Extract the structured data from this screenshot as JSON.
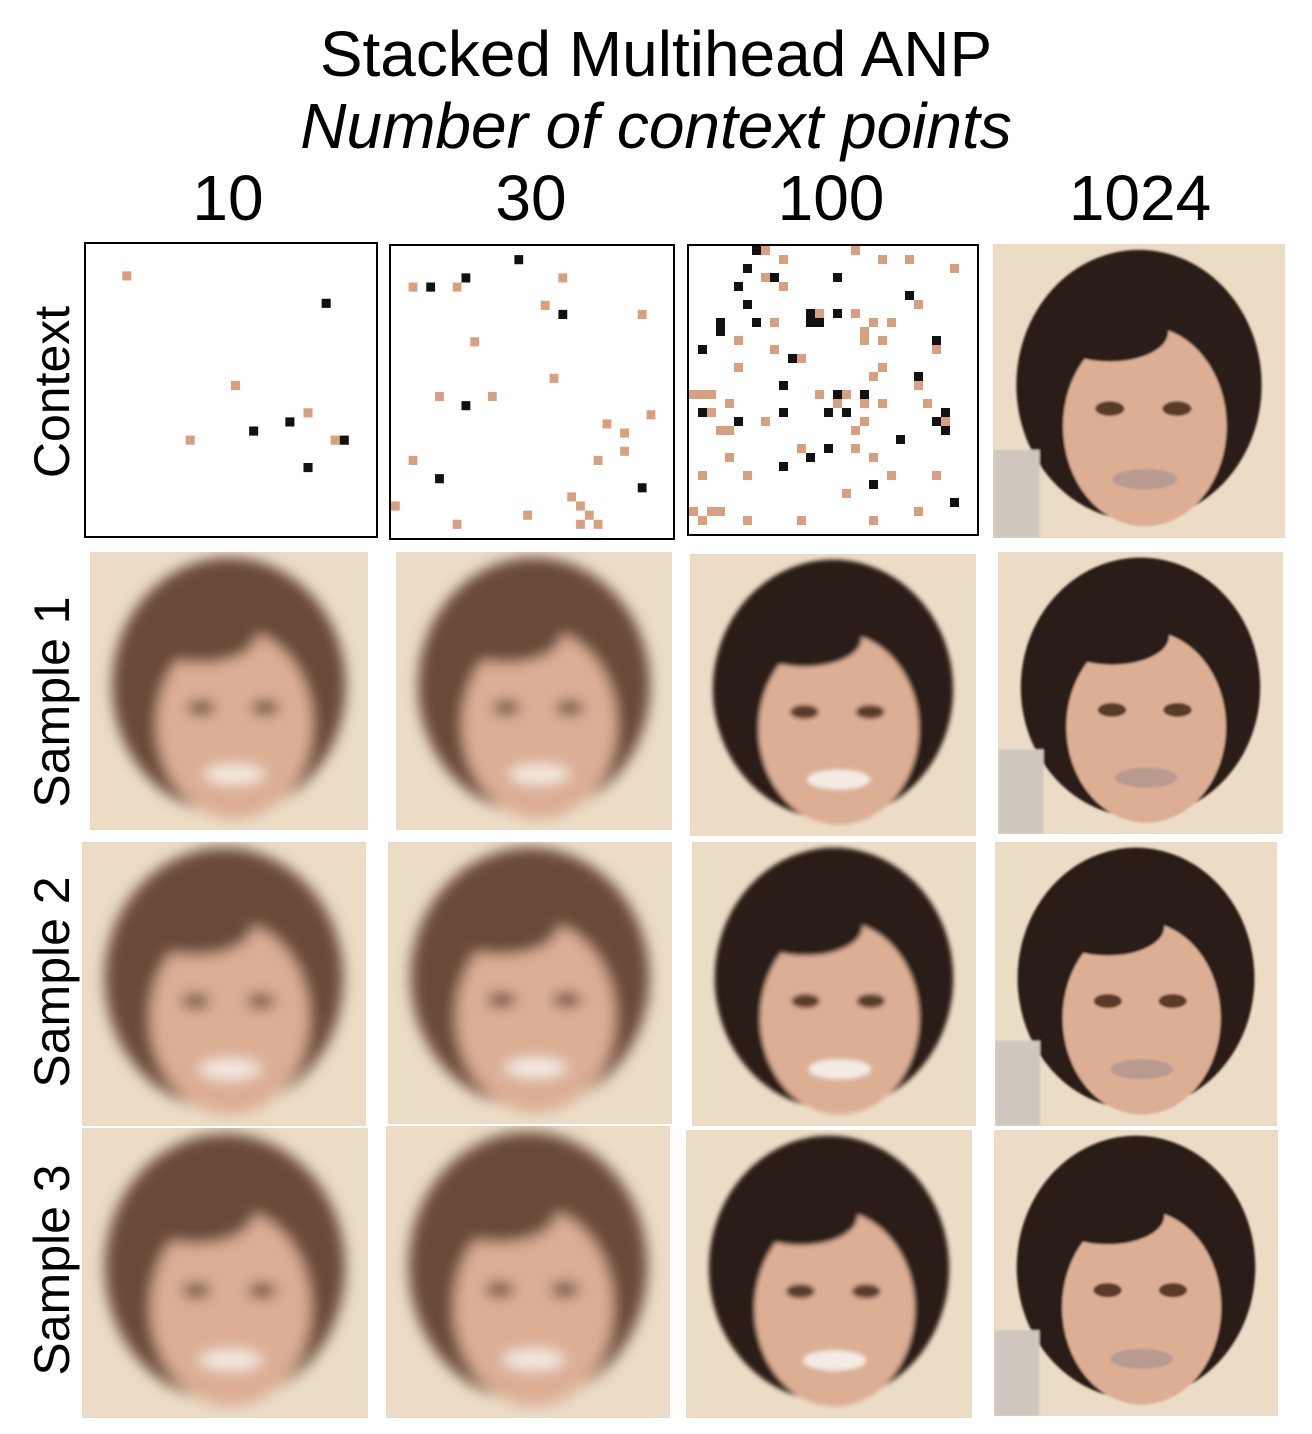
{
  "title": "Stacked Multihead ANP",
  "subtitle": "Number of context points",
  "columns": [
    "10",
    "30",
    "100",
    "1024"
  ],
  "rows": [
    "Context",
    "Sample 1",
    "Sample 2",
    "Sample 3"
  ],
  "colors": {
    "background": "#ecdcc6",
    "hair_dark": "#2a1a12",
    "hair_light": "#6b4a38",
    "skin": "#dcae94",
    "context_dot_dark": "#111111",
    "context_dot_skin": "#d9a080"
  }
}
